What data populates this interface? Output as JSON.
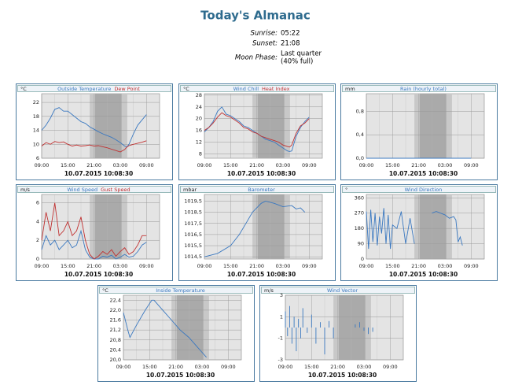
{
  "almanac": {
    "title": "Today's Almanac",
    "rows": [
      [
        "Sunrise:",
        "05:22"
      ],
      [
        "Sunset:",
        "21:08"
      ],
      [
        "Moon Phase:",
        "Last quarter",
        "(40% full)"
      ]
    ]
  },
  "chart_data": [
    {
      "type": "line",
      "unit": "°C",
      "timestamp": "10.07.2015 10:08:30",
      "grid": true,
      "xlim": [
        0,
        27
      ],
      "xticks": [
        {
          "value": 0,
          "label": "09:00"
        },
        {
          "value": 6,
          "label": "15:00"
        },
        {
          "value": 12,
          "label": "21:00"
        },
        {
          "value": 18,
          "label": "03:00"
        },
        {
          "value": 24,
          "label": "09:00"
        }
      ],
      "twilight": [
        11,
        19.6
      ],
      "night": [
        12.2,
        18.3
      ],
      "ylim": [
        6,
        24.5
      ],
      "yticks": [
        6,
        10,
        14,
        18,
        22
      ],
      "x": [
        0,
        1,
        2,
        3,
        4,
        5,
        6,
        7,
        8,
        9,
        10,
        11,
        12,
        13,
        14,
        15,
        16,
        17,
        18,
        19,
        19.5,
        20,
        21,
        22,
        23,
        24
      ],
      "series": [
        {
          "name": "Outside Temperature",
          "color": "#3a78c0",
          "values": [
            14,
            15.5,
            17.5,
            20,
            20.5,
            19.5,
            19.5,
            18.5,
            17.5,
            16.5,
            16,
            15,
            14.3,
            13.6,
            13,
            12.5,
            12,
            11.3,
            10.5,
            9.5,
            9.2,
            10,
            13,
            15.5,
            17,
            18.5
          ]
        },
        {
          "name": "Dew Point",
          "color": "#c03030",
          "values": [
            9.5,
            10.5,
            10,
            10.8,
            10.5,
            10.7,
            10,
            9.5,
            9.8,
            9.5,
            9.6,
            9.8,
            9.5,
            9.6,
            9.3,
            9.0,
            8.6,
            8.2,
            7.8,
            8.5,
            9.2,
            9.6,
            10,
            10.3,
            10.6,
            11
          ]
        }
      ]
    },
    {
      "type": "line",
      "unit": "°C",
      "timestamp": "10.07.2015 10:08:30",
      "grid": true,
      "xlim": [
        0,
        27
      ],
      "xticks": [
        {
          "value": 0,
          "label": "09:00"
        },
        {
          "value": 6,
          "label": "15:00"
        },
        {
          "value": 12,
          "label": "21:00"
        },
        {
          "value": 18,
          "label": "03:00"
        },
        {
          "value": 24,
          "label": "09:00"
        }
      ],
      "twilight": [
        11,
        19.6
      ],
      "night": [
        12.2,
        18.3
      ],
      "ylim": [
        6.5,
        28.5
      ],
      "yticks": [
        8,
        12,
        16,
        20,
        24,
        28
      ],
      "x": [
        0,
        1,
        2,
        3,
        4,
        5,
        6,
        7,
        8,
        9,
        10,
        11,
        12,
        13,
        14,
        15,
        16,
        17,
        18,
        19,
        19.5,
        20,
        21,
        22,
        23,
        24
      ],
      "series": [
        {
          "name": "Wind Chill",
          "color": "#3a78c0",
          "values": [
            15.5,
            17,
            19,
            22.5,
            24,
            21.5,
            21,
            20,
            19,
            17.5,
            17,
            16,
            15,
            14,
            13,
            12.5,
            12,
            11,
            10,
            9,
            8.8,
            9,
            14,
            17,
            19,
            20.5
          ]
        },
        {
          "name": "Heat Index",
          "color": "#c03030",
          "values": [
            16,
            17,
            18.5,
            20.5,
            22,
            21,
            20.5,
            19.5,
            18.5,
            17,
            16.5,
            15.5,
            15,
            14,
            13.5,
            13,
            12.5,
            12,
            11,
            10.5,
            10.3,
            11,
            15,
            17.5,
            18.5,
            20
          ]
        }
      ]
    },
    {
      "type": "line",
      "unit": "mm",
      "timestamp": "10.07.2015 10:08:30",
      "grid": true,
      "xlim": [
        0,
        27
      ],
      "xticks": [
        {
          "value": 0,
          "label": "09:00"
        },
        {
          "value": 6,
          "label": "15:00"
        },
        {
          "value": 12,
          "label": "21:00"
        },
        {
          "value": 18,
          "label": "03:00"
        },
        {
          "value": 24,
          "label": "09:00"
        }
      ],
      "twilight": [
        11,
        19.6
      ],
      "night": [
        12.2,
        18.3
      ],
      "ylim": [
        0,
        1.1
      ],
      "yticks": [
        {
          "value": 0,
          "label": "0,0"
        },
        {
          "value": 0.4,
          "label": "0,4"
        },
        {
          "value": 0.8,
          "label": "0,8"
        }
      ],
      "x": [
        0,
        24
      ],
      "series": [
        {
          "name": "Rain (hourly total)",
          "color": "#3a78c0",
          "values": [
            0,
            0
          ]
        }
      ]
    },
    {
      "type": "line",
      "unit": "m/s",
      "timestamp": "10.07.2015 10:08:30",
      "grid": true,
      "xlim": [
        0,
        27
      ],
      "xticks": [
        {
          "value": 0,
          "label": "09:00"
        },
        {
          "value": 6,
          "label": "15:00"
        },
        {
          "value": 12,
          "label": "21:00"
        },
        {
          "value": 18,
          "label": "03:00"
        },
        {
          "value": 24,
          "label": "09:00"
        }
      ],
      "twilight": [
        11,
        19.6
      ],
      "night": [
        12.2,
        18.3
      ],
      "ylim": [
        0,
        6.9
      ],
      "yticks": [
        0,
        2,
        4,
        6
      ],
      "x": [
        0,
        1,
        2,
        3,
        4,
        5,
        6,
        7,
        8,
        9,
        10,
        11,
        12,
        13,
        14,
        15,
        16,
        17,
        18,
        19,
        20,
        21,
        22,
        23,
        24
      ],
      "series": [
        {
          "name": "Wind Speed",
          "color": "#3a78c0",
          "values": [
            1,
            2.5,
            1.5,
            2,
            1,
            1.5,
            2,
            1.2,
            1.5,
            3,
            1,
            0.2,
            0,
            0,
            0.3,
            0.2,
            0.4,
            0,
            0.2,
            0.5,
            0.2,
            0.3,
            0.8,
            1.5,
            1.8
          ]
        },
        {
          "name": "Gust Speed",
          "color": "#c03030",
          "values": [
            2,
            5,
            3,
            6,
            2.5,
            3,
            4,
            2.5,
            3,
            4.5,
            2,
            0.5,
            0,
            0.3,
            0.8,
            0.5,
            1,
            0.3,
            0.8,
            1.2,
            0.5,
            0.8,
            1.5,
            2.5,
            2.5
          ]
        }
      ]
    },
    {
      "type": "line",
      "unit": "mbar",
      "timestamp": "10.07.2015 10:08:30",
      "grid": true,
      "xlim": [
        0,
        27
      ],
      "xticks": [
        {
          "value": 0,
          "label": "09:00"
        },
        {
          "value": 6,
          "label": "15:00"
        },
        {
          "value": 12,
          "label": "21:00"
        },
        {
          "value": 18,
          "label": "03:00"
        },
        {
          "value": 24,
          "label": "09:00"
        }
      ],
      "twilight": [
        11,
        19.6
      ],
      "night": [
        12.2,
        18.3
      ],
      "ylim": [
        1014.3,
        1020.1
      ],
      "yticks": [
        {
          "value": 1014.5,
          "label": "1014,5"
        },
        {
          "value": 1015.5,
          "label": "1015,5"
        },
        {
          "value": 1016.5,
          "label": "1016,5"
        },
        {
          "value": 1017.5,
          "label": "1017,5"
        },
        {
          "value": 1018.5,
          "label": "1018,5"
        },
        {
          "value": 1019.5,
          "label": "1019,5"
        }
      ],
      "x": [
        0,
        3,
        6,
        8,
        9.5,
        11,
        13,
        14,
        16,
        18,
        20,
        21,
        22,
        23
      ],
      "series": [
        {
          "name": "Barometer",
          "color": "#3a78c0",
          "values": [
            1014.5,
            1014.8,
            1015.5,
            1016.5,
            1017.5,
            1018.5,
            1019.3,
            1019.5,
            1019.3,
            1019.0,
            1019.1,
            1018.8,
            1018.9,
            1018.5
          ]
        }
      ]
    },
    {
      "type": "line",
      "unit": "°",
      "timestamp": "10.07.2015 10:08:30",
      "grid": true,
      "xlim": [
        0,
        27
      ],
      "xticks": [
        {
          "value": 0,
          "label": "09:00"
        },
        {
          "value": 6,
          "label": "15:00"
        },
        {
          "value": 12,
          "label": "21:00"
        },
        {
          "value": 18,
          "label": "03:00"
        },
        {
          "value": 24,
          "label": "09:00"
        }
      ],
      "twilight": [
        11,
        19.6
      ],
      "night": [
        12.2,
        18.3
      ],
      "ylim": [
        0,
        380
      ],
      "yticks": [
        0,
        90,
        180,
        270,
        360
      ],
      "x": [
        0,
        0.5,
        1,
        1.5,
        2,
        2.5,
        3,
        3.5,
        4,
        4.5,
        5,
        5.5,
        6,
        7,
        8,
        9,
        10,
        11,
        13,
        15,
        16,
        17,
        18,
        19,
        20,
        20.5,
        21,
        21.5,
        22
      ],
      "series": [
        {
          "name": "Wind Direction",
          "color": "#3a78c0",
          "values": [
            280,
            60,
            290,
            100,
            270,
            80,
            250,
            150,
            300,
            90,
            260,
            60,
            200,
            180,
            280,
            90,
            240,
            90,
            null,
            270,
            280,
            270,
            260,
            240,
            250,
            230,
            100,
            130,
            80
          ]
        }
      ]
    },
    {
      "type": "line",
      "unit": "°C",
      "timestamp": "10.07.2015 10:08:30",
      "grid": true,
      "xlim": [
        0,
        27
      ],
      "xticks": [
        {
          "value": 0,
          "label": "09:00"
        },
        {
          "value": 6,
          "label": "15:00"
        },
        {
          "value": 12,
          "label": "21:00"
        },
        {
          "value": 18,
          "label": "03:00"
        },
        {
          "value": 24,
          "label": "09:00"
        }
      ],
      "twilight": [
        11,
        19.6
      ],
      "night": [
        12.2,
        18.3
      ],
      "ylim": [
        20,
        22.6
      ],
      "yticks": [
        {
          "value": 20,
          "label": "20,0"
        },
        {
          "value": 20.4,
          "label": "20,4"
        },
        {
          "value": 20.8,
          "label": "20,8"
        },
        {
          "value": 21.2,
          "label": "21,2"
        },
        {
          "value": 21.6,
          "label": "21,6"
        },
        {
          "value": 22,
          "label": "22,0"
        },
        {
          "value": 22.4,
          "label": "22,4"
        }
      ],
      "x": [
        0,
        1,
        1.5,
        3,
        5,
        6.5,
        7,
        9,
        11,
        13,
        15,
        17,
        18,
        19
      ],
      "series": [
        {
          "name": "Inside Temperature",
          "color": "#3a78c0",
          "values": [
            21.9,
            21.2,
            20.9,
            21.4,
            22,
            22.4,
            22.4,
            22,
            21.6,
            21.2,
            20.9,
            20.5,
            20.3,
            20.1
          ]
        }
      ]
    },
    {
      "type": "vector",
      "unit": "m/s",
      "timestamp": "10.07.2015 10:08:30",
      "grid": true,
      "xlim": [
        0,
        27
      ],
      "xticks": [
        {
          "value": 0,
          "label": "09:00"
        },
        {
          "value": 6,
          "label": "15:00"
        },
        {
          "value": 12,
          "label": "21:00"
        },
        {
          "value": 18,
          "label": "03:00"
        },
        {
          "value": 24,
          "label": "09:00"
        }
      ],
      "twilight": [
        11,
        19.6
      ],
      "night": [
        12.2,
        18.3
      ],
      "ylim": [
        -3,
        3
      ],
      "yticks": [
        -3,
        -1,
        1,
        3
      ],
      "x": [
        0,
        0.5,
        1,
        1.5,
        2,
        2.5,
        3,
        3.5,
        4,
        5,
        6,
        7,
        8,
        9,
        10,
        11,
        16,
        17,
        18,
        19,
        20
      ],
      "series": [
        {
          "name": "Wind Vector",
          "color": "#3a78c0",
          "values": [
            1.5,
            -0.8,
            2,
            -1.5,
            1,
            -2.2,
            0.8,
            -1,
            1.8,
            -0.5,
            1.2,
            -1.5,
            0.5,
            -2.5,
            0.6,
            -1,
            0.3,
            0.5,
            -0.3,
            -0.6,
            -0.4
          ]
        }
      ]
    }
  ]
}
